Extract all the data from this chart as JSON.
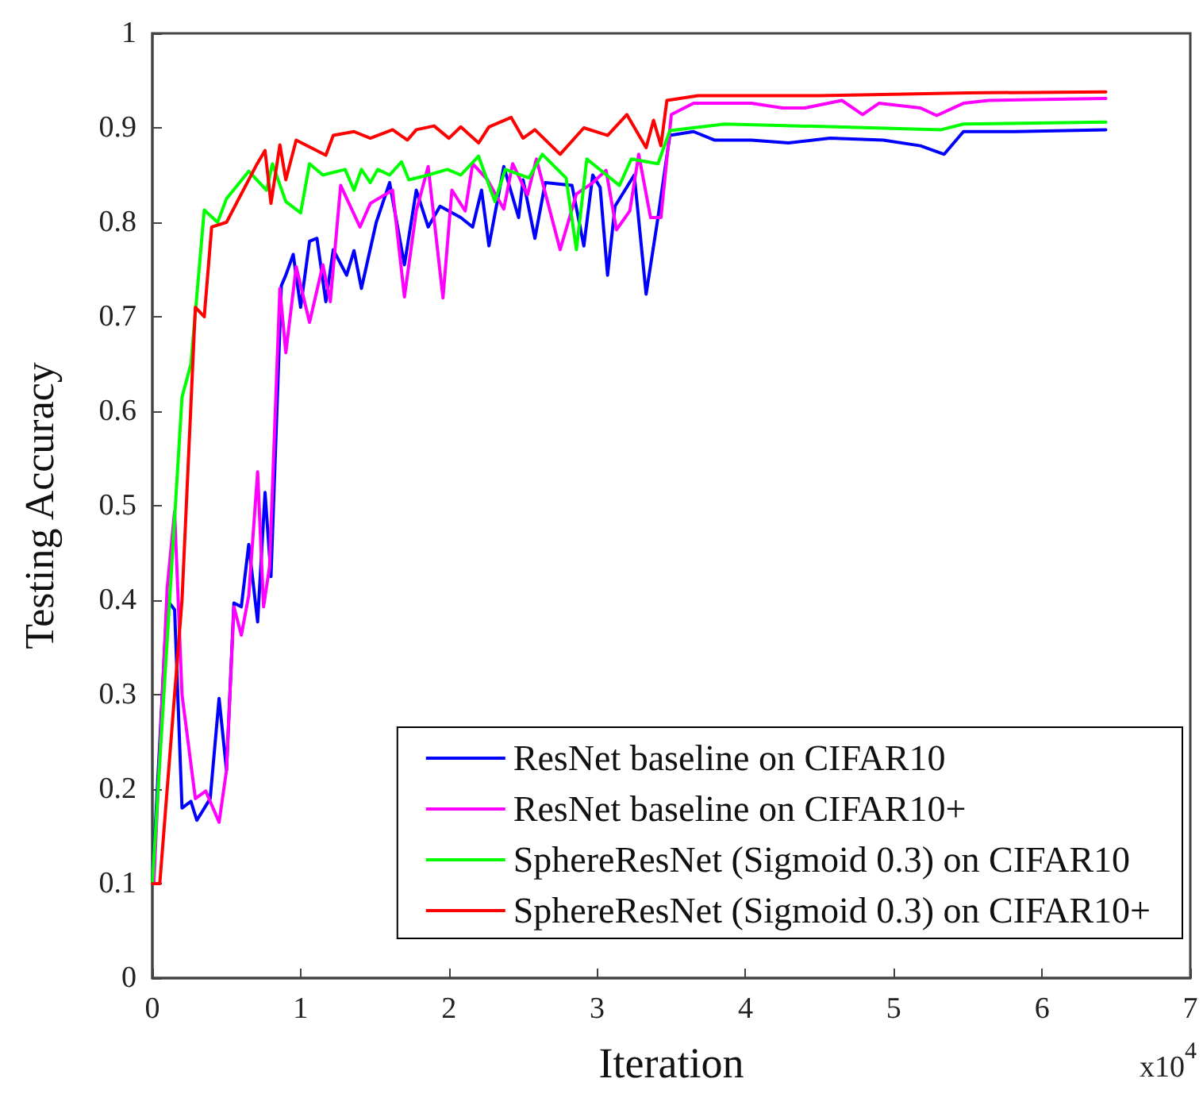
{
  "chart_data": {
    "type": "line",
    "xlabel": "Iteration",
    "ylabel": "Testing Accuracy",
    "annotations": [
      "x10$^{4}$"
    ],
    "xlim": [
      0,
      7
    ],
    "xticks": [
      0,
      1,
      2,
      3,
      4,
      5,
      6,
      7
    ],
    "ylim": [
      0,
      1
    ],
    "yticks": [
      0,
      0.1,
      0.2,
      0.3,
      0.4,
      0.5,
      0.6,
      0.7,
      0.8,
      0.9,
      1
    ],
    "grid": false,
    "legend": "bottom right",
    "marker": "none",
    "line_style": "solid",
    "series": [
      {
        "name": "ResNet baseline on CIFAR10",
        "color": "#0000ff",
        "x": [
          0,
          0.1,
          0.15,
          0.2,
          0.26,
          0.3,
          0.39,
          0.45,
          0.5,
          0.55,
          0.6,
          0.65,
          0.71,
          0.76,
          0.8,
          0.87,
          0.9,
          0.95,
          1.0,
          1.06,
          1.11,
          1.17,
          1.22,
          1.31,
          1.36,
          1.41,
          1.51,
          1.6,
          1.7,
          1.78,
          1.86,
          1.94,
          2.08,
          2.16,
          2.22,
          2.27,
          2.37,
          2.47,
          2.5,
          2.58,
          2.65,
          2.83,
          2.91,
          2.97,
          3.02,
          3.07,
          3.12,
          3.25,
          3.33,
          3.41,
          3.49,
          3.65,
          3.79,
          4.04,
          4.29,
          4.57,
          4.93,
          5.18,
          5.34,
          5.47,
          5.82,
          6.43
        ],
        "values": [
          0.1,
          0.4,
          0.39,
          0.18,
          0.187,
          0.167,
          0.19,
          0.296,
          0.22,
          0.397,
          0.393,
          0.459,
          0.377,
          0.514,
          0.425,
          0.733,
          0.744,
          0.766,
          0.71,
          0.78,
          0.783,
          0.716,
          0.771,
          0.744,
          0.77,
          0.73,
          0.8,
          0.842,
          0.755,
          0.834,
          0.795,
          0.817,
          0.805,
          0.795,
          0.834,
          0.775,
          0.859,
          0.805,
          0.845,
          0.783,
          0.842,
          0.839,
          0.775,
          0.85,
          0.837,
          0.744,
          0.817,
          0.85,
          0.724,
          0.805,
          0.892,
          0.896,
          0.887,
          0.887,
          0.884,
          0.889,
          0.887,
          0.881,
          0.872,
          0.896,
          0.896,
          0.898
        ]
      },
      {
        "name": "ResNet baseline on CIFAR10+",
        "color": "#ff00ff",
        "x": [
          0.01,
          0.1,
          0.15,
          0.2,
          0.29,
          0.36,
          0.45,
          0.5,
          0.55,
          0.6,
          0.65,
          0.71,
          0.75,
          0.79,
          0.86,
          0.9,
          0.97,
          1.06,
          1.15,
          1.2,
          1.27,
          1.4,
          1.47,
          1.62,
          1.7,
          1.78,
          1.86,
          1.96,
          2.02,
          2.11,
          2.16,
          2.26,
          2.37,
          2.43,
          2.53,
          2.59,
          2.75,
          2.86,
          2.97,
          3.06,
          3.13,
          3.22,
          3.28,
          3.36,
          3.43,
          3.5,
          3.65,
          4.04,
          4.25,
          4.4,
          4.65,
          4.79,
          4.9,
          5.18,
          5.29,
          5.47,
          5.64,
          6.43
        ],
        "values": [
          0.1,
          0.413,
          0.494,
          0.3,
          0.19,
          0.198,
          0.165,
          0.22,
          0.393,
          0.363,
          0.405,
          0.536,
          0.393,
          0.435,
          0.73,
          0.662,
          0.753,
          0.694,
          0.755,
          0.716,
          0.839,
          0.795,
          0.82,
          0.834,
          0.721,
          0.812,
          0.859,
          0.72,
          0.834,
          0.812,
          0.862,
          0.845,
          0.814,
          0.862,
          0.829,
          0.867,
          0.771,
          0.83,
          0.842,
          0.855,
          0.792,
          0.812,
          0.872,
          0.805,
          0.805,
          0.914,
          0.926,
          0.926,
          0.921,
          0.921,
          0.929,
          0.914,
          0.926,
          0.921,
          0.913,
          0.926,
          0.929,
          0.931
        ]
      },
      {
        "name": "SphereResNet (Sigmoid 0.3) on CIFAR10",
        "color": "#00ff00",
        "x": [
          0,
          0.2,
          0.26,
          0.35,
          0.44,
          0.5,
          0.65,
          0.77,
          0.81,
          0.9,
          1.0,
          1.06,
          1.15,
          1.3,
          1.36,
          1.41,
          1.47,
          1.52,
          1.6,
          1.68,
          1.73,
          1.86,
          1.99,
          2.08,
          2.2,
          2.31,
          2.38,
          2.54,
          2.63,
          2.79,
          2.86,
          2.93,
          3.15,
          3.23,
          3.41,
          3.49,
          3.86,
          4.61,
          5.32,
          5.47,
          6.43
        ],
        "values": [
          0.1,
          0.615,
          0.65,
          0.813,
          0.8,
          0.825,
          0.854,
          0.834,
          0.862,
          0.822,
          0.81,
          0.862,
          0.85,
          0.856,
          0.834,
          0.856,
          0.842,
          0.856,
          0.85,
          0.864,
          0.845,
          0.85,
          0.856,
          0.85,
          0.87,
          0.822,
          0.856,
          0.847,
          0.872,
          0.847,
          0.771,
          0.867,
          0.839,
          0.867,
          0.862,
          0.897,
          0.904,
          0.901,
          0.898,
          0.904,
          0.906
        ]
      },
      {
        "name": "SphereResNet (Sigmoid 0.3) on CIFAR10+",
        "color": "#ff0000",
        "x": [
          0,
          0.05,
          0.2,
          0.29,
          0.35,
          0.4,
          0.5,
          0.6,
          0.7,
          0.76,
          0.8,
          0.86,
          0.9,
          0.97,
          1.17,
          1.22,
          1.36,
          1.47,
          1.62,
          1.72,
          1.78,
          1.9,
          2.0,
          2.08,
          2.2,
          2.27,
          2.42,
          2.5,
          2.58,
          2.75,
          2.91,
          3.07,
          3.2,
          3.33,
          3.38,
          3.43,
          3.47,
          3.68,
          4.5,
          5.5,
          6.43
        ],
        "values": [
          0.1,
          0.1,
          0.4,
          0.71,
          0.7,
          0.795,
          0.8,
          0.83,
          0.86,
          0.876,
          0.82,
          0.882,
          0.845,
          0.887,
          0.871,
          0.892,
          0.896,
          0.889,
          0.898,
          0.887,
          0.898,
          0.902,
          0.889,
          0.901,
          0.884,
          0.901,
          0.911,
          0.889,
          0.898,
          0.872,
          0.9,
          0.892,
          0.914,
          0.879,
          0.908,
          0.881,
          0.929,
          0.934,
          0.934,
          0.937,
          0.938
        ]
      }
    ]
  }
}
